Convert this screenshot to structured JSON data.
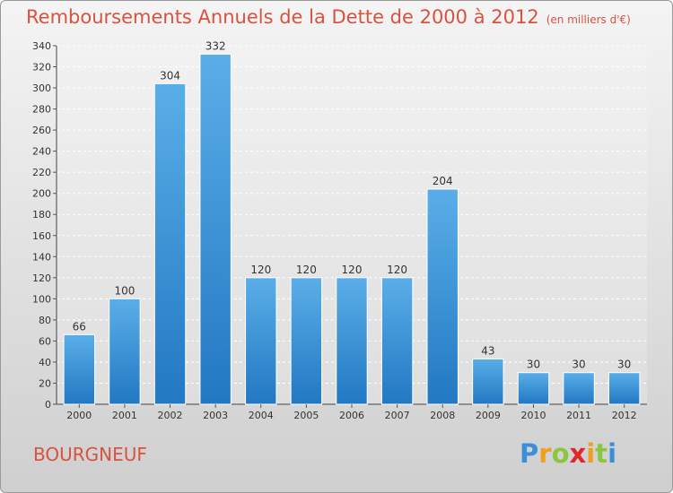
{
  "title": "Remboursements Annuels de la Dette de 2000 à 2012",
  "subtitle": "(en milliers d'€)",
  "place": "BOURGNEUF",
  "logo": {
    "letters": [
      "P",
      "r",
      "o",
      "x",
      "i",
      "t",
      "i"
    ],
    "colors": [
      "#3a8fd8",
      "#f0a020",
      "#8cc63f",
      "#e0282a",
      "#f0a020",
      "#8cc63f",
      "#3a8fd8"
    ]
  },
  "chart_data": {
    "type": "bar",
    "categories": [
      "2000",
      "2001",
      "2002",
      "2003",
      "2004",
      "2005",
      "2006",
      "2007",
      "2008",
      "2009",
      "2010",
      "2011",
      "2012"
    ],
    "values": [
      66,
      100,
      304,
      332,
      120,
      120,
      120,
      120,
      204,
      43,
      30,
      30,
      30
    ],
    "data_labels": [
      "66",
      "100",
      "304",
      "332",
      "120",
      "120",
      "120",
      "120",
      "204",
      "43",
      "30",
      "30",
      "30"
    ],
    "yticks": [
      0,
      20,
      40,
      60,
      80,
      100,
      120,
      140,
      160,
      180,
      200,
      220,
      240,
      260,
      280,
      300,
      320,
      340
    ],
    "ylim": [
      0,
      340
    ],
    "grid": true,
    "bar_color": "#3d93d8"
  }
}
